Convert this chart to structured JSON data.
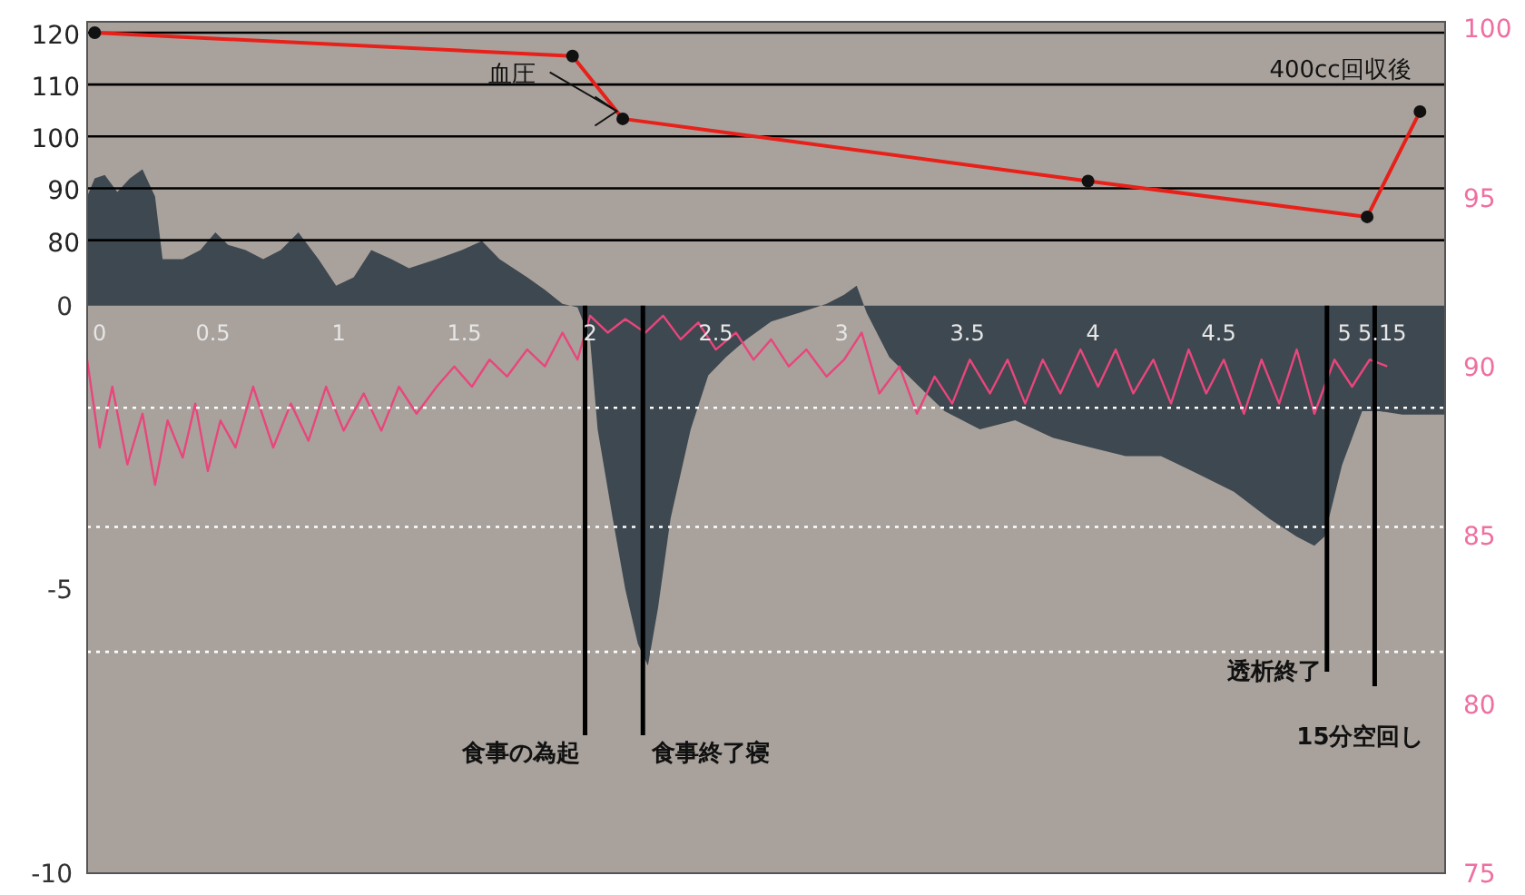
{
  "chart_data": {
    "type": "area",
    "xlim": [
      0,
      5.4
    ],
    "xticks": [
      0,
      0.5,
      1,
      1.5,
      2,
      2.5,
      3,
      3.5,
      4,
      4.5,
      5,
      5.15
    ],
    "ylim": [
      -10,
      5
    ],
    "yticks": [
      -10,
      -5,
      0
    ],
    "y2lim": [
      75,
      100.2
    ],
    "y2ticks": [
      75,
      80,
      85,
      90,
      95,
      100
    ],
    "y3lim": [
      -42,
      122.1
    ],
    "y3ticks": [
      80,
      90,
      100,
      110,
      120
    ],
    "ref_lines": [
      {
        "axis": "y3",
        "value": 80,
        "color": "#000000"
      },
      {
        "axis": "y3",
        "value": 90,
        "color": "#000000"
      },
      {
        "axis": "y3",
        "value": 100,
        "color": "#000000"
      },
      {
        "axis": "y3",
        "value": 110,
        "color": "#000000"
      },
      {
        "axis": "y3",
        "value": 120,
        "color": "#000000"
      },
      {
        "axis": "y",
        "value": -1.8,
        "color": "#ffffff",
        "line_style": "dotted"
      },
      {
        "axis": "y",
        "value": -3.9,
        "color": "#ffffff",
        "line_style": "dotted"
      },
      {
        "axis": "y",
        "value": -6.1,
        "color": "#ffffff",
        "line_style": "dotted"
      },
      {
        "axis": "x",
        "value": 1.98,
        "label": "食事の為起",
        "color": "#000000"
      },
      {
        "axis": "x",
        "value": 2.21,
        "label": "食事終了寝",
        "color": "#000000"
      },
      {
        "axis": "x",
        "value": 4.93,
        "label": "透析終了",
        "color": "#000000"
      },
      {
        "axis": "x",
        "value": 5.12,
        "label": "15分空回し",
        "color": "#000000"
      }
    ],
    "annotations": [
      "血圧",
      "400cc回収後"
    ],
    "series": [
      {
        "type": "area",
        "axis": "y",
        "color": "#3e4850",
        "x": [
          0,
          0.03,
          0.07,
          0.12,
          0.17,
          0.22,
          0.27,
          0.3,
          0.38,
          0.45,
          0.51,
          0.56,
          0.63,
          0.7,
          0.77,
          0.84,
          0.92,
          0.99,
          1.06,
          1.13,
          1.21,
          1.28,
          1.39,
          1.49,
          1.57,
          1.64,
          1.75,
          1.82,
          1.89,
          1.95,
          2.0,
          2.03,
          2.09,
          2.14,
          2.19,
          2.23,
          2.27,
          2.32,
          2.4,
          2.47,
          2.54,
          2.62,
          2.72,
          2.83,
          2.94,
          3.01,
          3.06,
          3.1,
          3.19,
          3.3,
          3.41,
          3.55,
          3.69,
          3.84,
          3.98,
          4.13,
          4.27,
          4.42,
          4.56,
          4.7,
          4.81,
          4.88,
          4.92,
          4.99,
          5.07,
          5.14,
          5.23,
          5.4
        ],
        "values": [
          1.92,
          2.24,
          2.3,
          2.0,
          2.24,
          2.4,
          1.92,
          0.82,
          0.82,
          0.98,
          1.29,
          1.07,
          0.98,
          0.82,
          0.98,
          1.29,
          0.82,
          0.35,
          0.5,
          0.98,
          0.82,
          0.66,
          0.82,
          0.98,
          1.14,
          0.82,
          0.5,
          0.28,
          0.03,
          -0.03,
          -0.6,
          -2.18,
          -3.75,
          -5.0,
          -5.96,
          -6.34,
          -5.33,
          -3.75,
          -2.18,
          -1.23,
          -0.91,
          -0.6,
          -0.28,
          -0.13,
          0.03,
          0.19,
          0.35,
          -0.13,
          -0.91,
          -1.39,
          -1.86,
          -2.18,
          -2.02,
          -2.33,
          -2.49,
          -2.65,
          -2.65,
          -2.97,
          -3.28,
          -3.75,
          -4.07,
          -4.23,
          -4.07,
          -2.81,
          -1.86,
          -1.86,
          -1.92,
          -1.92
        ]
      },
      {
        "type": "line",
        "axis": "y2",
        "color": "#e8467c",
        "x": [
          0,
          0.05,
          0.1,
          0.16,
          0.22,
          0.27,
          0.32,
          0.38,
          0.43,
          0.48,
          0.53,
          0.59,
          0.66,
          0.74,
          0.81,
          0.88,
          0.95,
          1.02,
          1.1,
          1.17,
          1.24,
          1.31,
          1.39,
          1.46,
          1.53,
          1.6,
          1.67,
          1.75,
          1.82,
          1.89,
          1.95,
          2.0,
          2.07,
          2.14,
          2.22,
          2.29,
          2.36,
          2.43,
          2.5,
          2.58,
          2.65,
          2.72,
          2.79,
          2.86,
          2.94,
          3.01,
          3.08,
          3.15,
          3.23,
          3.3,
          3.37,
          3.44,
          3.51,
          3.59,
          3.66,
          3.73,
          3.8,
          3.87,
          3.95,
          4.02,
          4.09,
          4.16,
          4.24,
          4.31,
          4.38,
          4.45,
          4.52,
          4.6,
          4.67,
          4.74,
          4.81,
          4.88,
          4.96,
          5.03,
          5.1,
          5.17
        ],
        "values": [
          90.2,
          87.6,
          89.4,
          87.1,
          88.6,
          86.5,
          88.4,
          87.3,
          88.9,
          86.9,
          88.4,
          87.6,
          89.4,
          87.6,
          88.9,
          87.8,
          89.4,
          88.1,
          89.2,
          88.1,
          89.4,
          88.6,
          89.4,
          90.0,
          89.4,
          90.2,
          89.7,
          90.5,
          90.0,
          91.0,
          90.2,
          91.5,
          91.0,
          91.4,
          91.0,
          91.5,
          90.8,
          91.3,
          90.5,
          91.0,
          90.2,
          90.8,
          90.0,
          90.5,
          89.7,
          90.2,
          91.0,
          89.2,
          90.0,
          88.6,
          89.7,
          88.9,
          90.2,
          89.2,
          90.2,
          88.9,
          90.2,
          89.2,
          90.5,
          89.4,
          90.5,
          89.2,
          90.2,
          88.9,
          90.5,
          89.2,
          90.2,
          88.6,
          90.2,
          88.9,
          90.5,
          88.6,
          90.2,
          89.4,
          90.2,
          90.0
        ]
      },
      {
        "type": "line",
        "axis": "y3",
        "color": "#e8201a",
        "marker": "circle",
        "x": [
          0.03,
          1.93,
          2.13,
          3.98,
          5.09,
          5.3
        ],
        "values": [
          120,
          115.5,
          103.4,
          91.4,
          84.5,
          104.8
        ]
      }
    ]
  }
}
